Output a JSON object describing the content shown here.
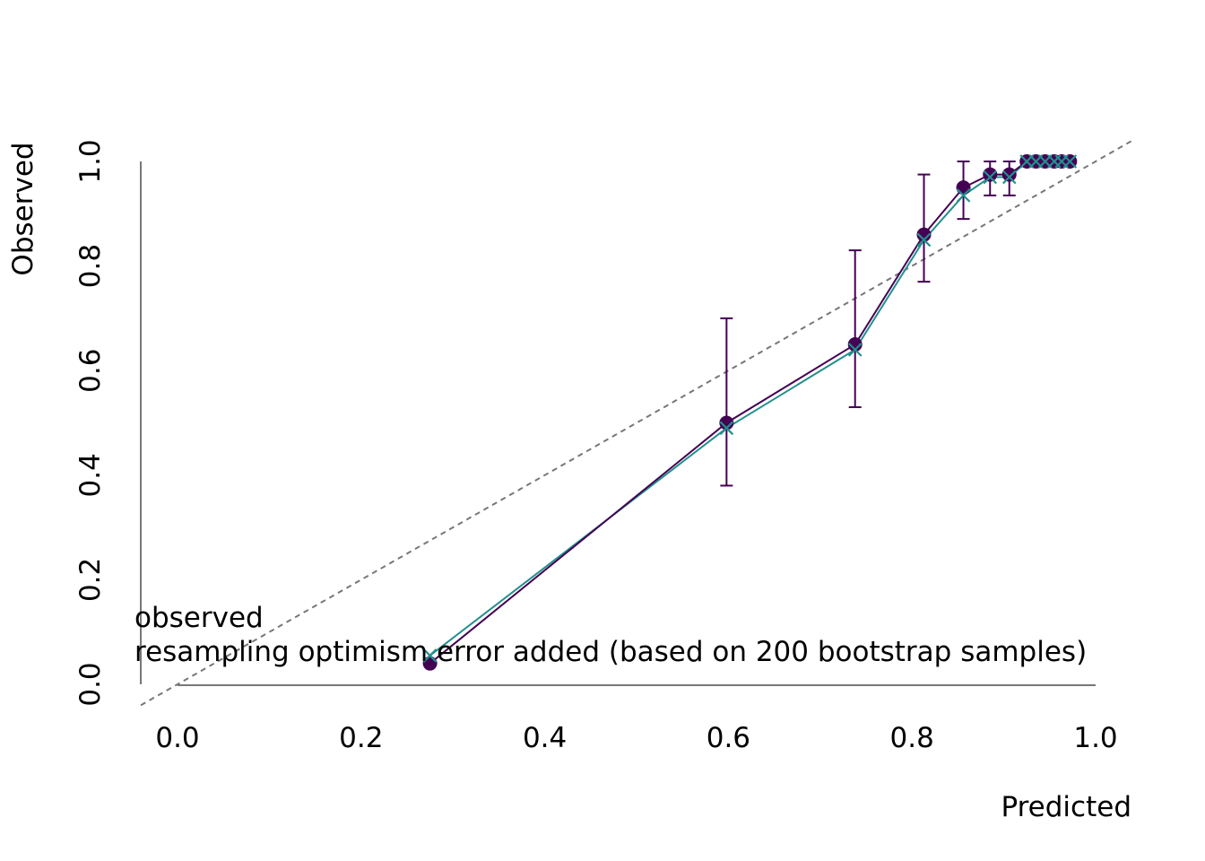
{
  "chart_data": {
    "type": "scatter",
    "title": "",
    "xlabel": "Predicted",
    "ylabel": "Observed",
    "xlim": [
      -0.04,
      1.04
    ],
    "ylim": [
      0.0,
      1.0
    ],
    "x_ticks": [
      "0.0",
      "0.2",
      "0.4",
      "0.6",
      "0.8",
      "1.0"
    ],
    "y_ticks": [
      "0.0",
      "0.2",
      "0.4",
      "0.6",
      "0.8",
      "1.0"
    ],
    "grid": false,
    "reference_line": {
      "style": "dashed",
      "color": "#777777",
      "from": [
        -0.04,
        -0.04
      ],
      "to": [
        1.04,
        1.04
      ]
    },
    "legend": {
      "placement": "bottom-left",
      "entries": [
        "observed",
        "resampling optimism error added (based on 200 bootstrap samples)"
      ]
    },
    "series": [
      {
        "name": "observed",
        "marker": "filled-circle",
        "color": "#440154",
        "x": [
          0.275,
          0.598,
          0.738,
          0.813,
          0.856,
          0.885,
          0.906,
          0.925,
          0.935,
          0.945,
          0.955,
          0.963,
          0.972
        ],
        "y": [
          0.04,
          0.5,
          0.65,
          0.86,
          0.95,
          0.975,
          0.975,
          1.0,
          1.0,
          1.0,
          1.0,
          1.0,
          1.0
        ],
        "y_low": [
          null,
          0.38,
          0.53,
          0.77,
          0.89,
          0.935,
          0.935,
          null,
          null,
          null,
          null,
          null,
          null
        ],
        "y_high": [
          null,
          0.7,
          0.83,
          0.975,
          1.0,
          1.0,
          1.0,
          null,
          null,
          null,
          null,
          null,
          null
        ]
      },
      {
        "name": "resampling optimism error added (based on 200 bootstrap samples)",
        "marker": "x",
        "color": "#21908C",
        "x": [
          0.275,
          0.598,
          0.738,
          0.813,
          0.856,
          0.885,
          0.906,
          0.925,
          0.935,
          0.945,
          0.955,
          0.963,
          0.972
        ],
        "y": [
          0.055,
          0.49,
          0.64,
          0.85,
          0.935,
          0.97,
          0.97,
          1.0,
          1.0,
          1.0,
          1.0,
          1.0,
          1.0
        ]
      }
    ]
  }
}
